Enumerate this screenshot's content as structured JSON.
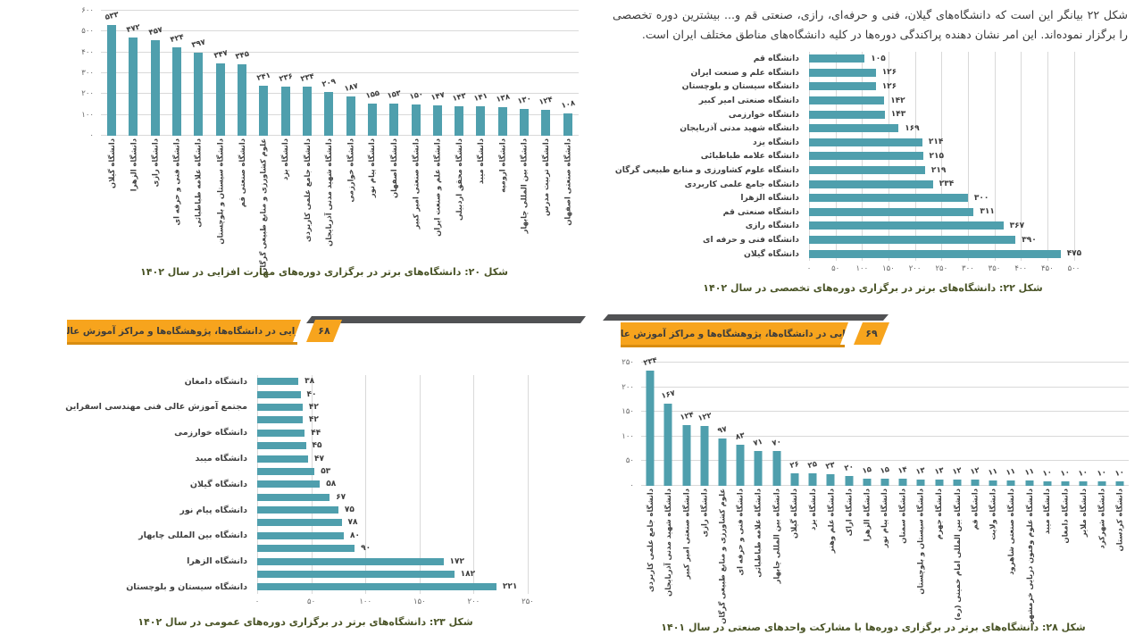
{
  "colors": {
    "bar": "#4f9fad",
    "grid": "#d9d9d9",
    "banner_orange": "#f7a41d",
    "banner_shadow": "#515254",
    "banner_underline": "#d98d10",
    "caption_text": "#4a5427",
    "body_text": "#3a3a3a"
  },
  "paragraph": "شکل ۲۲ بیانگر این است که دانشگاه‌های گیلان، فنی و حرفه‌ای، رازی، صنعتی قم و... بیشترین دوره تخصصی را برگزار نموده‌اند. این امر نشان دهنده پراکندگی دوره‌ها در کلیه دانشگاه‌های مناطق مختلف ایران است.",
  "banners": {
    "left": {
      "label": "مهارت‌افزایی در دانشگاه‌ها، پژوهشگاه‌ها و مراکز آموزش عالی کشور",
      "page_number": "۶۸"
    },
    "right": {
      "label": "مهارت‌افزایی در دانشگاه‌ها، پژوهشگاه‌ها و مراکز آموزش عالی کشور",
      "page_number": "۶۹"
    }
  },
  "chart_data": [
    {
      "type": "bar",
      "orientation": "vertical",
      "title": "شکل ۲۰: دانشگاه‌های برتر در برگزاری دوره‌های مهارت افزایی در سال ۱۴۰۲",
      "categories": [
        "دانشگاه گیلان",
        "دانشگاه الزهرا",
        "دانشگاه رازی",
        "دانشگاه فنی و حرفه ای",
        "دانشگاه علامه طباطبائی",
        "دانشگاه سیستان و بلوچستان",
        "دانشگاه صنعتی قم",
        "علوم کشاورزی و منابع طبیعی گرگان",
        "دانشگاه یزد",
        "دانشگاه جامع علمی کاربردی",
        "دانشگاه شهید مدنی آذربایجان",
        "دانشگاه خوارزمی",
        "دانشگاه پیام نور",
        "دانشگاه اصفهان",
        "دانشگاه صنعتی امیر کبیر",
        "دانشگاه علم و صنعت ایران",
        "دانشگاه محقق اردبیلی",
        "دانشگاه میبد",
        "دانشگاه ارومیه",
        "دانشگاه بین المللی چابهار",
        "دانشگاه تربیت مدرس",
        "دانشگاه صنعتی اصفهان"
      ],
      "values": [
        533,
        472,
        457,
        424,
        397,
        347,
        345,
        241,
        236,
        234,
        209,
        187,
        155,
        153,
        150,
        147,
        143,
        141,
        138,
        130,
        124,
        108
      ],
      "ylim": [
        0,
        600
      ],
      "ytick_step": 100,
      "grid": true,
      "number_style": "persian-digits"
    },
    {
      "type": "bar",
      "orientation": "horizontal",
      "title": "شکل ۲۲: دانشگاه‌های برتر در برگزاری دوره‌های تخصصی در سال ۱۴۰۲",
      "categories": [
        "دانشگاه قم",
        "دانشگاه علم و صنعت ایران",
        "دانشگاه سیستان و بلوچستان",
        "دانشگاه صنعتی امیر کبیر",
        "دانشگاه خوارزمی",
        "دانشگاه شهید مدنی آذربایجان",
        "دانشگاه یزد",
        "دانشگاه علامه طباطبائی",
        "دانشگاه علوم کشاورزی و منابع طبیعی گرگان",
        "دانشگاه جامع علمی کاربردی",
        "دانشگاه الزهرا",
        "دانشگاه صنعتی قم",
        "دانشگاه رازی",
        "دانشگاه فنی و حرفه ای",
        "دانشگاه گیلان"
      ],
      "values": [
        105,
        126,
        126,
        142,
        143,
        169,
        214,
        215,
        219,
        234,
        300,
        311,
        367,
        390,
        475
      ],
      "xlim": [
        0,
        500
      ],
      "xtick_step": 50,
      "grid": true,
      "number_style": "persian-digits"
    },
    {
      "type": "bar",
      "orientation": "horizontal",
      "title": "شکل ۲۳: دانشگاه‌های برتر در برگزاری دوره‌های عمومی در سال ۱۴۰۲",
      "categories": [
        "دانشگاه دامغان",
        "",
        "مجتمع آموزش عالی فنی مهندسی اسفراین",
        "",
        "دانشگاه خوارزمی",
        "",
        "دانشگاه میبد",
        "",
        "دانشگاه گیلان",
        "",
        "دانشگاه پیام نور",
        "",
        "دانشگاه بین المللی چابهار",
        "",
        "دانشگاه الزهرا",
        "",
        "دانشگاه سیستان و بلوچستان"
      ],
      "values": [
        38,
        40,
        42,
        42,
        44,
        45,
        47,
        53,
        58,
        67,
        75,
        78,
        80,
        90,
        172,
        182,
        221
      ],
      "xlim": [
        0,
        250
      ],
      "xtick_step": 50,
      "grid": true,
      "number_style": "persian-digits"
    },
    {
      "type": "bar",
      "orientation": "vertical",
      "title": "شکل ۲۸: دانشگاه‌های برتر در برگزاری دوره‌ها با مشارکت واحدهای صنعتی در سال ۱۴۰۱",
      "categories": [
        "دانشگاه جامع علمی کاربردی",
        "دانشگاه شهید مدنی آذربایجان",
        "دانشگاه صنعتی امیر کبیر",
        "دانشگاه رازی",
        "علوم کشاورزی و منابع طبیعی گرگان",
        "دانشگاه فنی و حرفه ای",
        "دانشگاه علامه طباطبائی",
        "دانشگاه بین المللی چابهار",
        "دانشگاه گیلان",
        "دانشگاه یزد",
        "دانشگاه علم وهنر",
        "دانشگاه اراک",
        "دانشگاه الزهرا",
        "دانشگاه پیام نور",
        "دانشگاه سمنان",
        "دانشگاه سیستان و بلوچستان",
        "دانشگاه جهرم",
        "دانشگاه بین المللی امام خمینی (ره)",
        "دانشگاه قم",
        "دانشگاه ولایت",
        "دانشگاه صنعتی شاهرود",
        "دانشگاه علوم وفنون دریایی خرمشهر",
        "دانشگاه میبد",
        "دانشگاه دامغان",
        "دانشگاه ملایر",
        "دانشگاه شهرکرد",
        "دانشگاه کردستان"
      ],
      "values": [
        234,
        167,
        124,
        122,
        97,
        83,
        71,
        70,
        26,
        25,
        23,
        20,
        15,
        15,
        14,
        13,
        13,
        12,
        12,
        11,
        11,
        11,
        10,
        10,
        10,
        10,
        10
      ],
      "ylim": [
        0,
        250
      ],
      "ytick_step": 50,
      "grid": true,
      "number_style": "persian-digits"
    }
  ]
}
